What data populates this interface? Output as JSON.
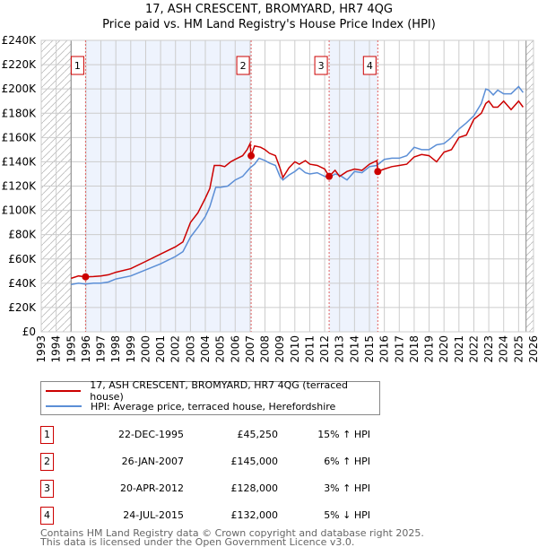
{
  "chart_data": {
    "type": "line",
    "title": "17, ASH CRESCENT, BROMYARD, HR7 4QG",
    "subtitle": "Price paid vs. HM Land Registry's House Price Index (HPI)",
    "xlim": [
      1993,
      2026
    ],
    "ylim": [
      0,
      240000
    ],
    "grid": true,
    "x_ticks": [
      "1993",
      "1994",
      "1995",
      "1996",
      "1997",
      "1998",
      "1999",
      "2000",
      "2001",
      "2002",
      "2003",
      "2004",
      "2005",
      "2006",
      "2007",
      "2008",
      "2009",
      "2010",
      "2011",
      "2012",
      "2013",
      "2014",
      "2015",
      "2016",
      "2017",
      "2018",
      "2019",
      "2020",
      "2021",
      "2022",
      "2023",
      "2024",
      "2025",
      "2026"
    ],
    "y_ticks": [
      {
        "v": 0,
        "label": "£0"
      },
      {
        "v": 20000,
        "label": "£20K"
      },
      {
        "v": 40000,
        "label": "£40K"
      },
      {
        "v": 60000,
        "label": "£60K"
      },
      {
        "v": 80000,
        "label": "£80K"
      },
      {
        "v": 100000,
        "label": "£100K"
      },
      {
        "v": 120000,
        "label": "£120K"
      },
      {
        "v": 140000,
        "label": "£140K"
      },
      {
        "v": 160000,
        "label": "£160K"
      },
      {
        "v": 180000,
        "label": "£180K"
      },
      {
        "v": 200000,
        "label": "£200K"
      },
      {
        "v": 220000,
        "label": "£220K"
      },
      {
        "v": 240000,
        "label": "£240K"
      }
    ],
    "hatched_ranges": [
      [
        1993,
        1995
      ],
      [
        2025.5,
        2026
      ]
    ],
    "shaded_ranges": [
      [
        1995.97,
        2007.07
      ],
      [
        2012.3,
        2015.56
      ]
    ],
    "series": [
      {
        "name": "17, ASH CRESCENT, BROMYARD, HR7 4QG (terraced house)",
        "color": "#cc0000",
        "x": [
          1995,
          1995.5,
          1995.97,
          1996.5,
          1997,
          1997.5,
          1998,
          1999,
          2000,
          2001,
          2002,
          2002.5,
          2003,
          2003.5,
          2004,
          2004.3,
          2004.6,
          2005,
          2005.3,
          2005.7,
          2006,
          2006.5,
          2006.8,
          2007.0,
          2007.07,
          2007.3,
          2007.7,
          2008,
          2008.3,
          2008.7,
          2009,
          2009.2,
          2009.6,
          2010,
          2010.3,
          2010.7,
          2011,
          2011.5,
          2012,
          2012.3,
          2012.7,
          2013,
          2013.5,
          2014,
          2014.5,
          2015,
          2015.5,
          2015.56,
          2016,
          2016.5,
          2017,
          2017.5,
          2018,
          2018.5,
          2019,
          2019.5,
          2020,
          2020.5,
          2021,
          2021.5,
          2022,
          2022.5,
          2022.8,
          2023,
          2023.3,
          2023.6,
          2024,
          2024.5,
          2025,
          2025.3
        ],
        "y": [
          44000,
          46000,
          45250,
          45500,
          46000,
          47000,
          49000,
          52000,
          58000,
          64000,
          70000,
          74000,
          90000,
          98000,
          110000,
          118000,
          137000,
          137000,
          136000,
          140000,
          142000,
          145000,
          150000,
          155000,
          145000,
          153000,
          152000,
          150000,
          147000,
          145000,
          135000,
          127000,
          135000,
          140000,
          138000,
          141000,
          138000,
          137000,
          134000,
          128000,
          133000,
          128000,
          132000,
          134000,
          133000,
          138000,
          141000,
          132000,
          134000,
          136000,
          137000,
          138000,
          144000,
          146000,
          145000,
          140000,
          148000,
          150000,
          160000,
          162000,
          175000,
          180000,
          188000,
          190000,
          185000,
          185000,
          190000,
          183000,
          190000,
          185000
        ]
      },
      {
        "name": "HPI: Average price, terraced house, Herefordshire",
        "color": "#5b8ed6",
        "x": [
          1995,
          1995.5,
          1995.97,
          1996.5,
          1997,
          1997.5,
          1998,
          1999,
          2000,
          2001,
          2002,
          2002.5,
          2003,
          2003.5,
          2004,
          2004.3,
          2004.7,
          2005,
          2005.5,
          2006,
          2006.5,
          2007,
          2007.3,
          2007.6,
          2008,
          2008.3,
          2008.7,
          2009,
          2009.2,
          2009.6,
          2010,
          2010.3,
          2010.7,
          2011,
          2011.5,
          2012,
          2012.3,
          2012.7,
          2013,
          2013.5,
          2014,
          2014.5,
          2015,
          2015.5,
          2016,
          2016.5,
          2017,
          2017.5,
          2018,
          2018.5,
          2019,
          2019.5,
          2020,
          2020.5,
          2021,
          2021.5,
          2022,
          2022.5,
          2022.8,
          2023,
          2023.3,
          2023.6,
          2024,
          2024.5,
          2025,
          2025.3
        ],
        "y": [
          39000,
          40000,
          39300,
          40000,
          40000,
          41000,
          43500,
          46000,
          51000,
          56000,
          62000,
          66000,
          78000,
          86000,
          95000,
          103000,
          119000,
          119000,
          120000,
          125000,
          128000,
          135000,
          138000,
          143000,
          141000,
          139000,
          137000,
          128000,
          125000,
          129000,
          132000,
          135000,
          131000,
          130000,
          131000,
          128000,
          127000,
          130000,
          129000,
          125000,
          132000,
          131000,
          136000,
          137000,
          142000,
          143000,
          143000,
          145000,
          152000,
          150000,
          150000,
          154000,
          155000,
          160000,
          167000,
          172000,
          178000,
          188000,
          200000,
          199000,
          195000,
          199000,
          196000,
          196000,
          202000,
          197000
        ]
      }
    ],
    "markers": [
      {
        "label": "1",
        "x": 1995.97,
        "y": 45250
      },
      {
        "label": "2",
        "x": 2007.07,
        "y": 145000
      },
      {
        "label": "3",
        "x": 2012.3,
        "y": 128000
      },
      {
        "label": "4",
        "x": 2015.56,
        "y": 132000
      }
    ]
  },
  "header": {
    "title": "17, ASH CRESCENT, BROMYARD, HR7 4QG",
    "subtitle": "Price paid vs. HM Land Registry's House Price Index (HPI)"
  },
  "legend": [
    {
      "label": "17, ASH CRESCENT, BROMYARD, HR7 4QG (terraced house)",
      "color": "#cc0000"
    },
    {
      "label": "HPI: Average price, terraced house, Herefordshire",
      "color": "#5b8ed6"
    }
  ],
  "transactions": [
    {
      "num": "1",
      "date": "22-DEC-1995",
      "price": "£45,250",
      "hpi": "15% ↑ HPI"
    },
    {
      "num": "2",
      "date": "26-JAN-2007",
      "price": "£145,000",
      "hpi": "6% ↑ HPI"
    },
    {
      "num": "3",
      "date": "20-APR-2012",
      "price": "£128,000",
      "hpi": "3% ↑ HPI"
    },
    {
      "num": "4",
      "date": "24-JUL-2015",
      "price": "£132,000",
      "hpi": "5% ↓ HPI"
    }
  ],
  "footer": {
    "line1": "Contains HM Land Registry data © Crown copyright and database right 2025.",
    "line2": "This data is licensed under the Open Government Licence v3.0."
  }
}
